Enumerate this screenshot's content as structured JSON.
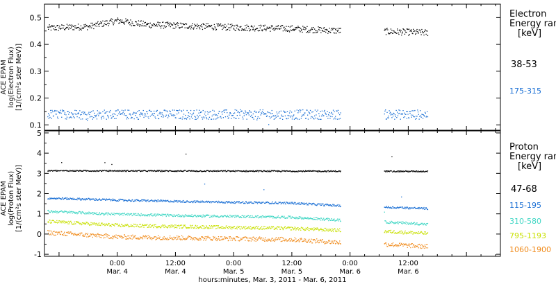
{
  "x_axis": {
    "tick_times": [
      "0:00",
      "12:00",
      "0:00",
      "12:00",
      "0:00",
      "12:00"
    ],
    "tick_dates": [
      "Mar. 4",
      "Mar. 4",
      "Mar. 5",
      "Mar. 5",
      "Mar. 6",
      "Mar. 6"
    ],
    "tick_hours": [
      24,
      36,
      48,
      60,
      72,
      84
    ],
    "range_hours": [
      9,
      103
    ],
    "data_gap_hours": [
      70,
      79
    ],
    "label": "hours:minutes, Mar.  3, 2011 - Mar.  6, 2011"
  },
  "chart_data": [
    {
      "type": "scatter",
      "ylabel_lines": [
        "ACE EPAM",
        "log(Electron Flux)",
        "[1/(cm²s ster MeV)]"
      ],
      "ylim": [
        0.08,
        0.55
      ],
      "yticks": [
        0.1,
        0.2,
        0.3,
        0.4,
        0.5
      ],
      "yticklabels": [
        "0.1",
        "0.2",
        "0.3",
        "0.4",
        "0.5"
      ],
      "legend_title_lines": [
        "Electron",
        "Energy ran",
        "[keV]"
      ],
      "series": [
        {
          "name": "38-53",
          "color": "#000000",
          "level": 0.465,
          "scatter": 0.012,
          "trend": [
            [
              9,
              0.462
            ],
            [
              18,
              0.468
            ],
            [
              24,
              0.49
            ],
            [
              30,
              0.475
            ],
            [
              48,
              0.465
            ],
            [
              60,
              0.46
            ],
            [
              70,
              0.452
            ],
            [
              79,
              0.45
            ],
            [
              88,
              0.445
            ]
          ]
        },
        {
          "name": "175-315",
          "color": "#1a6fd4",
          "level": 0.14,
          "scatter": 0.018,
          "trend": [
            [
              9,
              0.14
            ],
            [
              88,
              0.14
            ]
          ]
        }
      ]
    },
    {
      "type": "scatter",
      "ylabel_lines": [
        "ACE EPAM",
        "log(Proton Flux)",
        "[1/(cm²s ster MeV)]"
      ],
      "ylim": [
        -1.1,
        5.1
      ],
      "yticks": [
        -1,
        0,
        1,
        2,
        3,
        4,
        5
      ],
      "yticklabels": [
        "-1",
        "0",
        "1",
        "2",
        "3",
        "4",
        "5"
      ],
      "legend_title_lines": [
        "Proton",
        "Energy ran",
        "[keV]"
      ],
      "series": [
        {
          "name": "47-68",
          "color": "#000000",
          "scatter": 0.03,
          "trend": [
            [
              9,
              3.15
            ],
            [
              88,
              3.12
            ]
          ]
        },
        {
          "name": "115-195",
          "color": "#1a6fd4",
          "scatter": 0.05,
          "trend": [
            [
              9,
              1.8
            ],
            [
              24,
              1.7
            ],
            [
              40,
              1.62
            ],
            [
              60,
              1.55
            ],
            [
              70,
              1.42
            ],
            [
              79,
              1.35
            ],
            [
              88,
              1.28
            ]
          ]
        },
        {
          "name": "310-580",
          "color": "#3fd6c4",
          "scatter": 0.06,
          "trend": [
            [
              9,
              1.15
            ],
            [
              24,
              1.0
            ],
            [
              40,
              0.92
            ],
            [
              60,
              0.85
            ],
            [
              70,
              0.7
            ],
            [
              79,
              0.62
            ],
            [
              88,
              0.5
            ]
          ]
        },
        {
          "name": "795-1193",
          "color": "#c8e000",
          "scatter": 0.08,
          "trend": [
            [
              9,
              0.65
            ],
            [
              24,
              0.45
            ],
            [
              40,
              0.38
            ],
            [
              60,
              0.3
            ],
            [
              70,
              0.2
            ],
            [
              79,
              0.15
            ],
            [
              88,
              0.05
            ]
          ]
        },
        {
          "name": "1060-1900",
          "color": "#f08a1a",
          "scatter": 0.11,
          "trend": [
            [
              9,
              0.1
            ],
            [
              24,
              -0.12
            ],
            [
              40,
              -0.18
            ],
            [
              60,
              -0.25
            ],
            [
              70,
              -0.4
            ],
            [
              79,
              -0.48
            ],
            [
              88,
              -0.6
            ]
          ]
        }
      ]
    }
  ]
}
